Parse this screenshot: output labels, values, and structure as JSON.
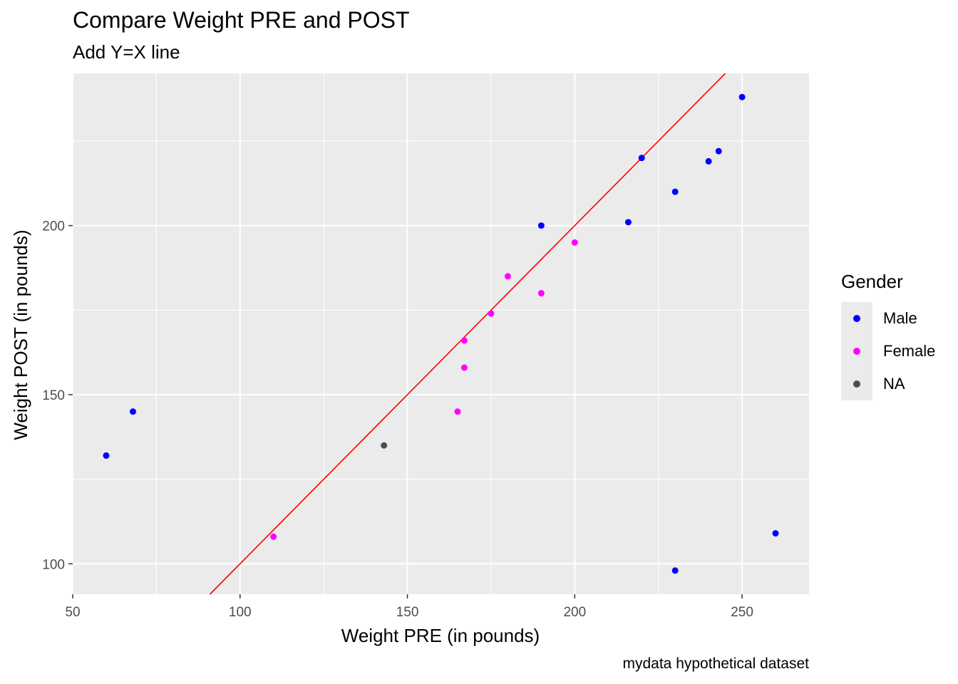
{
  "chart_data": {
    "type": "scatter",
    "title": "Compare Weight PRE and POST",
    "subtitle": "Add Y=X line",
    "caption": "mydata hypothetical dataset",
    "xlabel": "Weight PRE (in pounds)",
    "ylabel": "Weight POST (in pounds)",
    "xlim": [
      50,
      270
    ],
    "ylim": [
      91,
      245
    ],
    "x_ticks": [
      50,
      100,
      150,
      200,
      250
    ],
    "y_ticks": [
      100,
      150,
      200
    ],
    "grid": true,
    "reference_line": {
      "slope": 1,
      "intercept": 0,
      "color": "#ff0000"
    },
    "legend": {
      "title": "Gender",
      "position": "right",
      "entries": [
        {
          "label": "Male",
          "color": "#0000ff"
        },
        {
          "label": "Female",
          "color": "#ff00ff"
        },
        {
          "label": "NA",
          "color": "#4d4d4d"
        }
      ]
    },
    "series": [
      {
        "name": "Male",
        "color": "#0000ff",
        "points": [
          [
            60,
            132
          ],
          [
            68,
            145
          ],
          [
            190,
            200
          ],
          [
            216,
            201
          ],
          [
            220,
            220
          ],
          [
            230,
            210
          ],
          [
            230,
            98
          ],
          [
            240,
            219
          ],
          [
            243,
            222
          ],
          [
            250,
            238
          ],
          [
            260,
            109
          ]
        ]
      },
      {
        "name": "Female",
        "color": "#ff00ff",
        "points": [
          [
            110,
            108
          ],
          [
            165,
            145
          ],
          [
            167,
            158
          ],
          [
            167,
            166
          ],
          [
            175,
            174
          ],
          [
            180,
            185
          ],
          [
            190,
            180
          ],
          [
            200,
            195
          ]
        ]
      },
      {
        "name": "NA",
        "color": "#4d4d4d",
        "points": [
          [
            143,
            135
          ]
        ]
      }
    ]
  }
}
